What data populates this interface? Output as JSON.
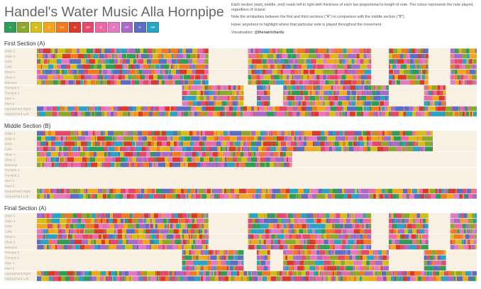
{
  "header": {
    "title": "Handel's Water Music Alla Hornpipe",
    "description": [
      "Each section (start, middle, end) reads left to right with thickness of each bar proportional to length of note. The colour represents the note played, regardless of octave.",
      "Note the similarities between the first and third sections (\"A\") in comparison with the middle section (\"B\").",
      "Hover anywhere to highlight where that particular note is played throughout the movement."
    ],
    "credit_label": "Visualisation:",
    "credit_handle": "@thenatrichards"
  },
  "legend": [
    {
      "note": "A",
      "color": "#2f9e55"
    },
    {
      "note": "A#",
      "color": "#8da82c"
    },
    {
      "note": "B",
      "color": "#d4be1c"
    },
    {
      "note": "C",
      "color": "#f2a51f"
    },
    {
      "note": "C#",
      "color": "#f07a22"
    },
    {
      "note": "D",
      "color": "#d93a2a"
    },
    {
      "note": "D#",
      "color": "#e4486b"
    },
    {
      "note": "E",
      "color": "#ea6aa6"
    },
    {
      "note": "F",
      "color": "#e47ac1"
    },
    {
      "note": "F#",
      "color": "#a86cc8"
    },
    {
      "note": "G",
      "color": "#5a6fc2"
    },
    {
      "note": "G#",
      "color": "#2aa3c5"
    }
  ],
  "style": {
    "background": "#f8f1e3",
    "grid": "#ffffff",
    "label_color": "#a9a9a9"
  },
  "chart_data": {
    "type": "heatmap",
    "sections": [
      {
        "title": "First Section (A)",
        "instruments": [
          {
            "name": "Violin 1",
            "runs": [
              [
                0,
                0.39
              ],
              [
                0.48,
                0.76
              ],
              [
                0.8,
                0.89
              ],
              [
                0.94,
                1
              ]
            ]
          },
          {
            "name": "Violin 2",
            "runs": [
              [
                0,
                0.39
              ],
              [
                0.48,
                0.76
              ],
              [
                0.8,
                0.89
              ],
              [
                0.94,
                1
              ]
            ]
          },
          {
            "name": "Viola",
            "runs": [
              [
                0,
                0.39
              ],
              [
                0.48,
                0.76
              ],
              [
                0.8,
                0.89
              ],
              [
                0.94,
                1
              ]
            ]
          },
          {
            "name": "Cello",
            "runs": [
              [
                0,
                0.39
              ],
              [
                0.48,
                0.76
              ],
              [
                0.8,
                0.89
              ],
              [
                0.94,
                1
              ]
            ]
          },
          {
            "name": "Oboe 1",
            "runs": [
              [
                0,
                0.39
              ],
              [
                0.48,
                0.76
              ],
              [
                0.8,
                0.89
              ],
              [
                0.94,
                1
              ]
            ]
          },
          {
            "name": "Oboe 2",
            "runs": [
              [
                0,
                0.39
              ],
              [
                0.48,
                0.76
              ],
              [
                0.8,
                0.89
              ],
              [
                0.94,
                1
              ]
            ]
          },
          {
            "name": "Bassoon",
            "runs": [
              [
                0,
                0.39
              ],
              [
                0.48,
                0.76
              ],
              [
                0.8,
                0.89
              ],
              [
                0.94,
                1
              ]
            ]
          },
          {
            "name": "Trumpet 1",
            "runs": [
              [
                0.33,
                0.47
              ],
              [
                0.5,
                0.53
              ],
              [
                0.56,
                0.8
              ],
              [
                0.88,
                0.93
              ]
            ]
          },
          {
            "name": "Trumpet 2",
            "runs": [
              [
                0.33,
                0.47
              ],
              [
                0.5,
                0.53
              ],
              [
                0.56,
                0.8
              ],
              [
                0.88,
                0.93
              ]
            ]
          },
          {
            "name": "Horn 1",
            "runs": [
              [
                0.33,
                0.47
              ],
              [
                0.5,
                0.53
              ],
              [
                0.56,
                0.8
              ],
              [
                0.88,
                0.93
              ]
            ]
          },
          {
            "name": "Horn 2",
            "runs": [
              [
                0.33,
                0.47
              ],
              [
                0.5,
                0.53
              ],
              [
                0.56,
                0.8
              ],
              [
                0.88,
                0.93
              ]
            ]
          },
          {
            "name": "Harpsichord Right",
            "runs": [
              [
                0,
                1
              ]
            ]
          },
          {
            "name": "Harpsichord Left",
            "runs": [
              [
                0,
                1
              ]
            ]
          }
        ]
      },
      {
        "title": "Middle Section (B)",
        "instruments": [
          {
            "name": "Violin 1",
            "runs": [
              [
                0,
                0.9
              ]
            ]
          },
          {
            "name": "Violin 2",
            "runs": [
              [
                0,
                0.9
              ]
            ]
          },
          {
            "name": "Viola",
            "runs": [
              [
                0,
                0.9
              ]
            ]
          },
          {
            "name": "Cello",
            "runs": [
              [
                0,
                0.9
              ]
            ]
          },
          {
            "name": "Oboe 1",
            "runs": [
              [
                0,
                0.58
              ]
            ]
          },
          {
            "name": "Oboe 2",
            "runs": [
              [
                0,
                0.58
              ]
            ]
          },
          {
            "name": "Bassoon",
            "runs": [
              [
                0,
                0.58
              ]
            ]
          },
          {
            "name": "Trumpet 1",
            "runs": []
          },
          {
            "name": "Trumpet 2",
            "runs": []
          },
          {
            "name": "Horn 1",
            "runs": []
          },
          {
            "name": "Horn 2",
            "runs": []
          },
          {
            "name": "Harpsichord Right",
            "runs": [
              [
                0,
                1
              ]
            ]
          },
          {
            "name": "Harpsichord Left",
            "runs": [
              [
                0,
                1
              ]
            ]
          }
        ]
      },
      {
        "title": "Final Section (A)",
        "instruments": [
          {
            "name": "Violin 1",
            "runs": [
              [
                0,
                0.39
              ],
              [
                0.48,
                0.76
              ],
              [
                0.8,
                0.89
              ],
              [
                0.94,
                1
              ]
            ]
          },
          {
            "name": "Violin 2",
            "runs": [
              [
                0,
                0.39
              ],
              [
                0.48,
                0.76
              ],
              [
                0.8,
                0.89
              ],
              [
                0.94,
                1
              ]
            ]
          },
          {
            "name": "Viola",
            "runs": [
              [
                0,
                0.39
              ],
              [
                0.48,
                0.76
              ],
              [
                0.8,
                0.89
              ],
              [
                0.94,
                1
              ]
            ]
          },
          {
            "name": "Cello",
            "runs": [
              [
                0,
                0.39
              ],
              [
                0.48,
                0.76
              ],
              [
                0.8,
                0.89
              ],
              [
                0.94,
                1
              ]
            ]
          },
          {
            "name": "Oboe 1",
            "runs": [
              [
                0,
                0.39
              ],
              [
                0.48,
                0.76
              ],
              [
                0.8,
                0.89
              ],
              [
                0.94,
                1
              ]
            ]
          },
          {
            "name": "Oboe 2",
            "runs": [
              [
                0,
                0.39
              ],
              [
                0.48,
                0.76
              ],
              [
                0.8,
                0.89
              ],
              [
                0.94,
                1
              ]
            ]
          },
          {
            "name": "Bassoon",
            "runs": [
              [
                0,
                0.39
              ],
              [
                0.48,
                0.76
              ],
              [
                0.8,
                0.89
              ],
              [
                0.94,
                1
              ]
            ]
          },
          {
            "name": "Trumpet 1",
            "runs": [
              [
                0.33,
                0.47
              ],
              [
                0.5,
                0.53
              ],
              [
                0.56,
                0.8
              ],
              [
                0.88,
                0.93
              ]
            ]
          },
          {
            "name": "Trumpet 2",
            "runs": [
              [
                0.33,
                0.47
              ],
              [
                0.5,
                0.53
              ],
              [
                0.56,
                0.8
              ],
              [
                0.88,
                0.93
              ]
            ]
          },
          {
            "name": "Horn 1",
            "runs": [
              [
                0.33,
                0.47
              ],
              [
                0.5,
                0.53
              ],
              [
                0.56,
                0.8
              ],
              [
                0.88,
                0.93
              ]
            ]
          },
          {
            "name": "Horn 2",
            "runs": [
              [
                0.33,
                0.47
              ],
              [
                0.5,
                0.53
              ],
              [
                0.56,
                0.8
              ],
              [
                0.88,
                0.93
              ]
            ]
          },
          {
            "name": "Harpsichord Right",
            "runs": [
              [
                0,
                1
              ]
            ]
          },
          {
            "name": "Harpsichord Left",
            "runs": [
              [
                0,
                1
              ]
            ]
          }
        ]
      }
    ]
  }
}
